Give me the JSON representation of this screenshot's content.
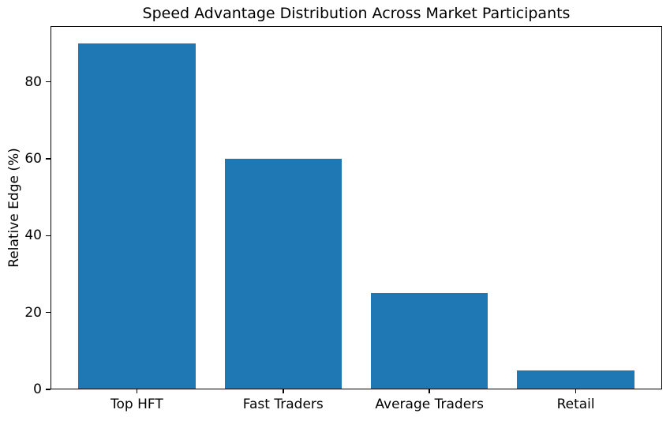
{
  "chart_data": {
    "type": "bar",
    "title": "Speed Advantage Distribution Across Market Participants",
    "xlabel": "",
    "ylabel": "Relative Edge (%)",
    "categories": [
      "Top HFT",
      "Fast Traders",
      "Average Traders",
      "Retail"
    ],
    "values": [
      90,
      60,
      25,
      5
    ],
    "yticks": [
      0,
      20,
      40,
      60,
      80
    ],
    "ylim": [
      0,
      94.5
    ],
    "xlim": [
      -0.59,
      3.59
    ],
    "bar_width": 0.8,
    "bar_color": "#1f77b4",
    "text_color": "#000000",
    "spine_color": "#000000",
    "grid": false,
    "legend": null
  }
}
